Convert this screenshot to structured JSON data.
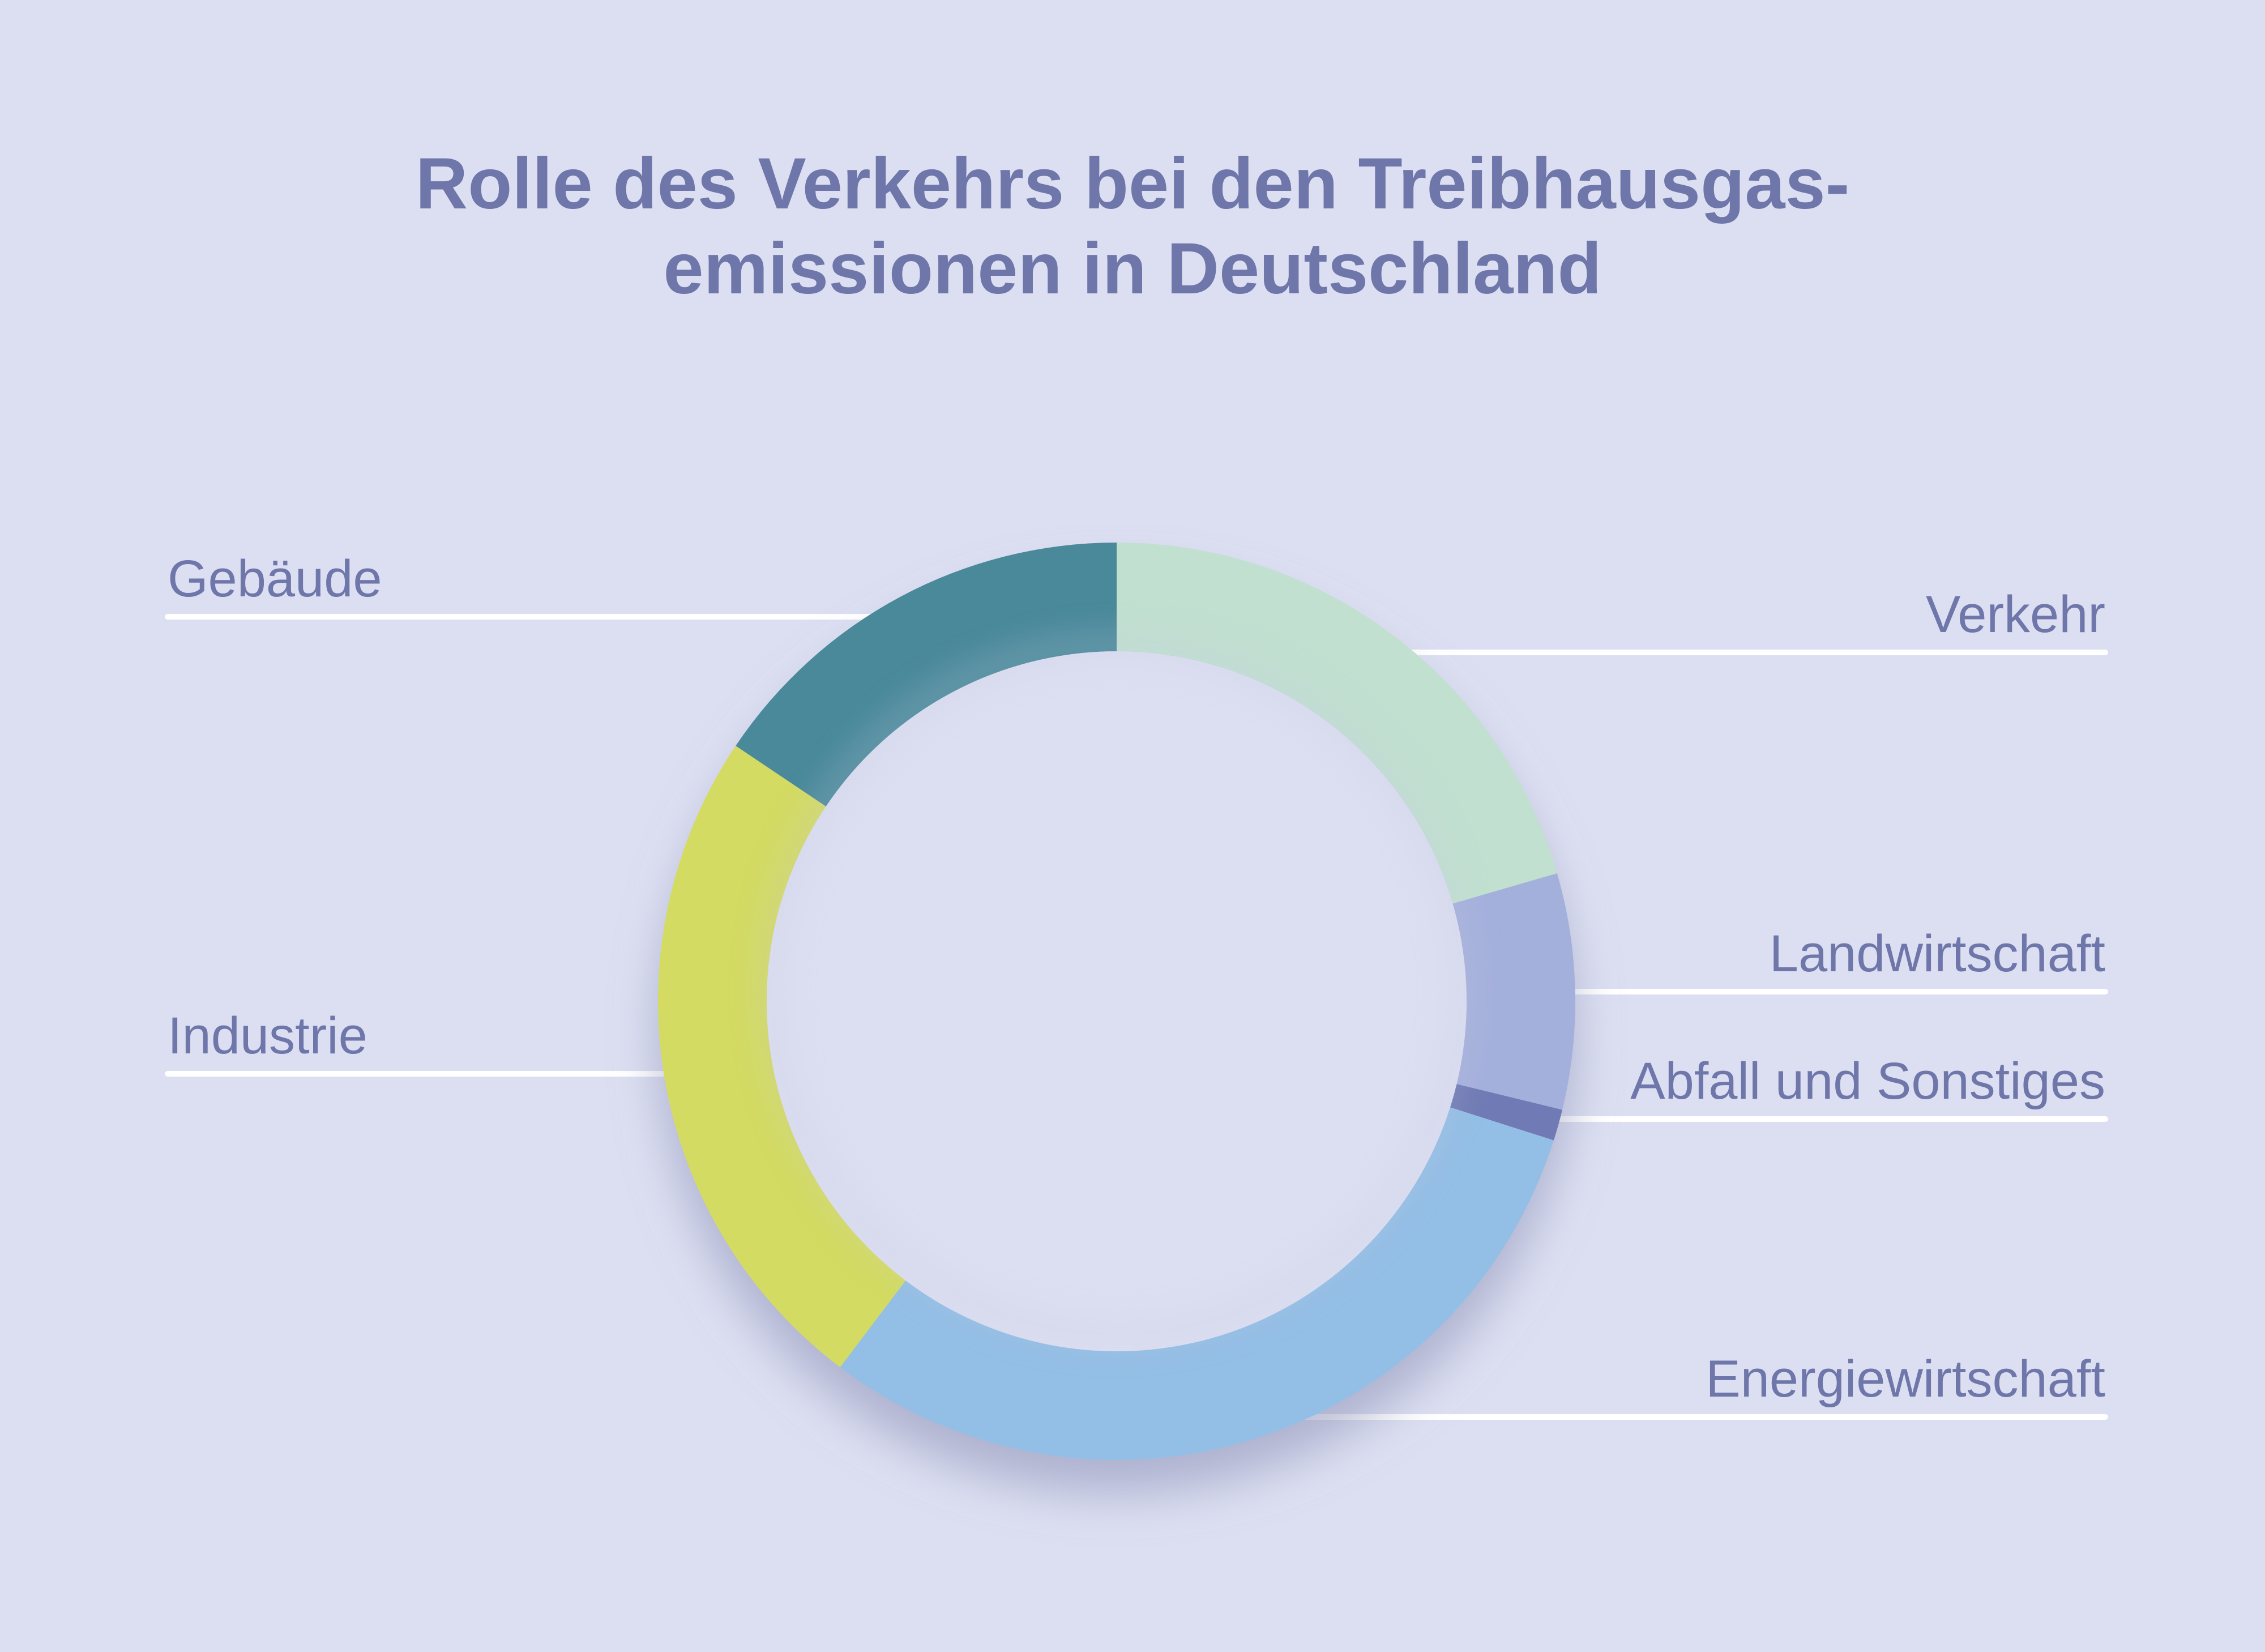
{
  "chart_data": {
    "type": "pie",
    "variant": "donut",
    "title_lines": [
      "Rolle des Verkehrs bei den Treibhausgas-",
      "emissionen in Deutschland"
    ],
    "segments": [
      {
        "label": "Verkehr",
        "value": 20.5,
        "color": "#c1e0d0",
        "label_side": "right"
      },
      {
        "label": "Landwirtschaft",
        "value": 8.3,
        "color": "#a4b0dc",
        "label_side": "right"
      },
      {
        "label": "Abfall und Sonstiges",
        "value": 1.1,
        "color": "#707ab4",
        "label_side": "right"
      },
      {
        "label": "Energiewirtschaft",
        "value": 30.4,
        "color": "#93bee5",
        "label_side": "right"
      },
      {
        "label": "Industrie",
        "value": 24.1,
        "color": "#d3db62",
        "label_side": "left"
      },
      {
        "label": "Gebäude",
        "value": 15.6,
        "color": "#48899a",
        "label_side": "left"
      }
    ],
    "colors": {
      "background": "#dcdff1",
      "text": "#6e76aa",
      "leader_lines": "#ffffff"
    }
  }
}
